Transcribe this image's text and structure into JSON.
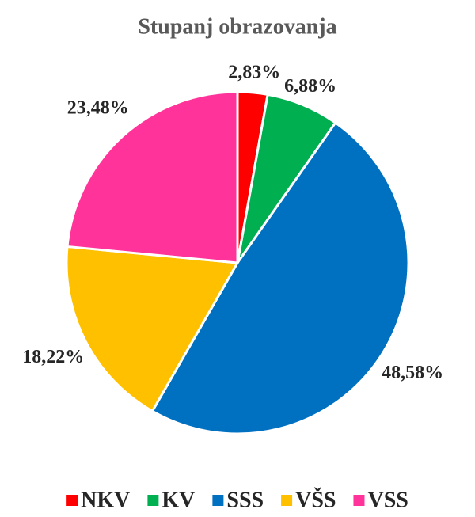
{
  "chart_data": {
    "type": "pie",
    "title": "Stupanj obrazovanja",
    "categories": [
      "NKV",
      "KV",
      "SSS",
      "VŠS",
      "VSS"
    ],
    "values": [
      2.83,
      6.88,
      48.58,
      18.22,
      23.48
    ],
    "value_labels": [
      "2,83%",
      "6,88%",
      "48,58%",
      "18,22%",
      "23,48%"
    ],
    "colors": [
      "#ff0000",
      "#00b050",
      "#0070c0",
      "#ffc000",
      "#ff3399"
    ],
    "legend": "bottom"
  }
}
